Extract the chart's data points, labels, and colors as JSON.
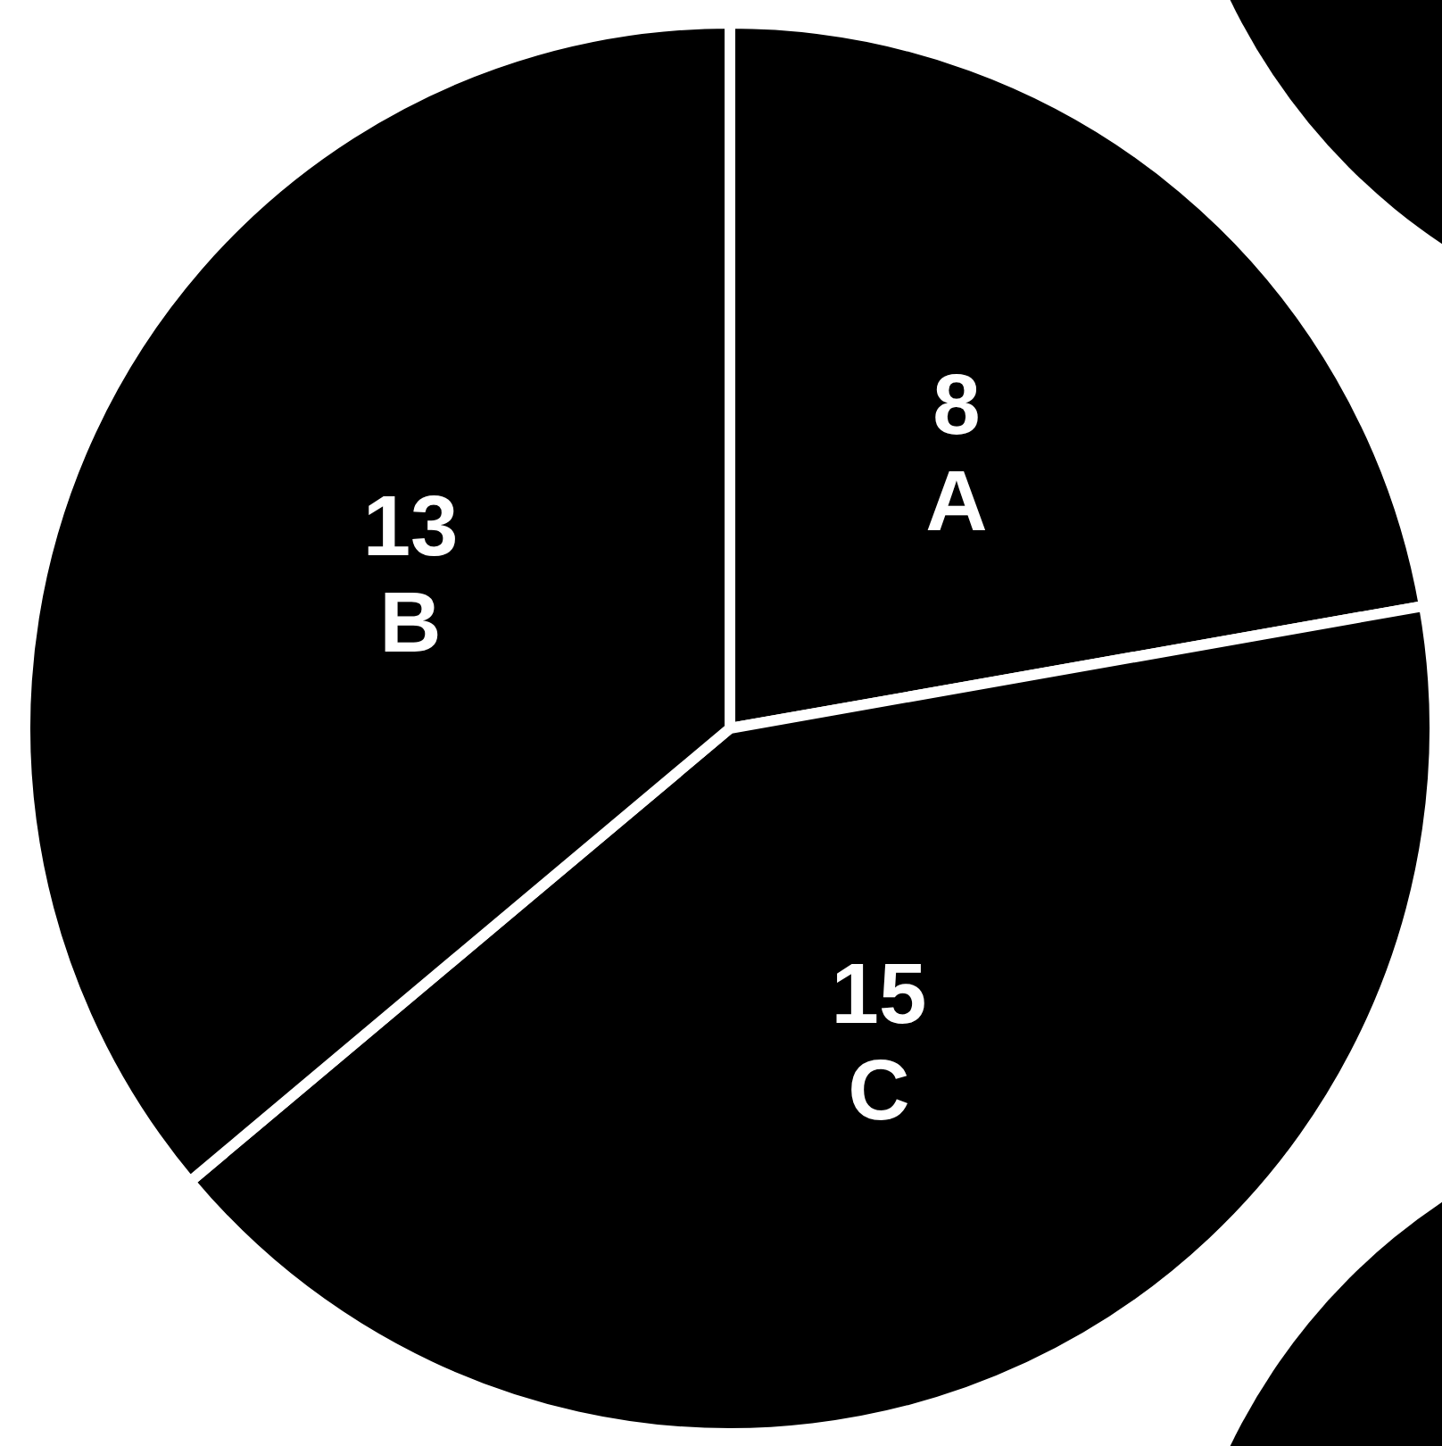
{
  "chart_data": {
    "type": "pie",
    "categories": [
      "A",
      "C",
      "B"
    ],
    "values": [
      8,
      15,
      13
    ],
    "colors": [
      "#000000",
      "#000000",
      "#000000"
    ],
    "data_labels": true,
    "legend": false
  }
}
